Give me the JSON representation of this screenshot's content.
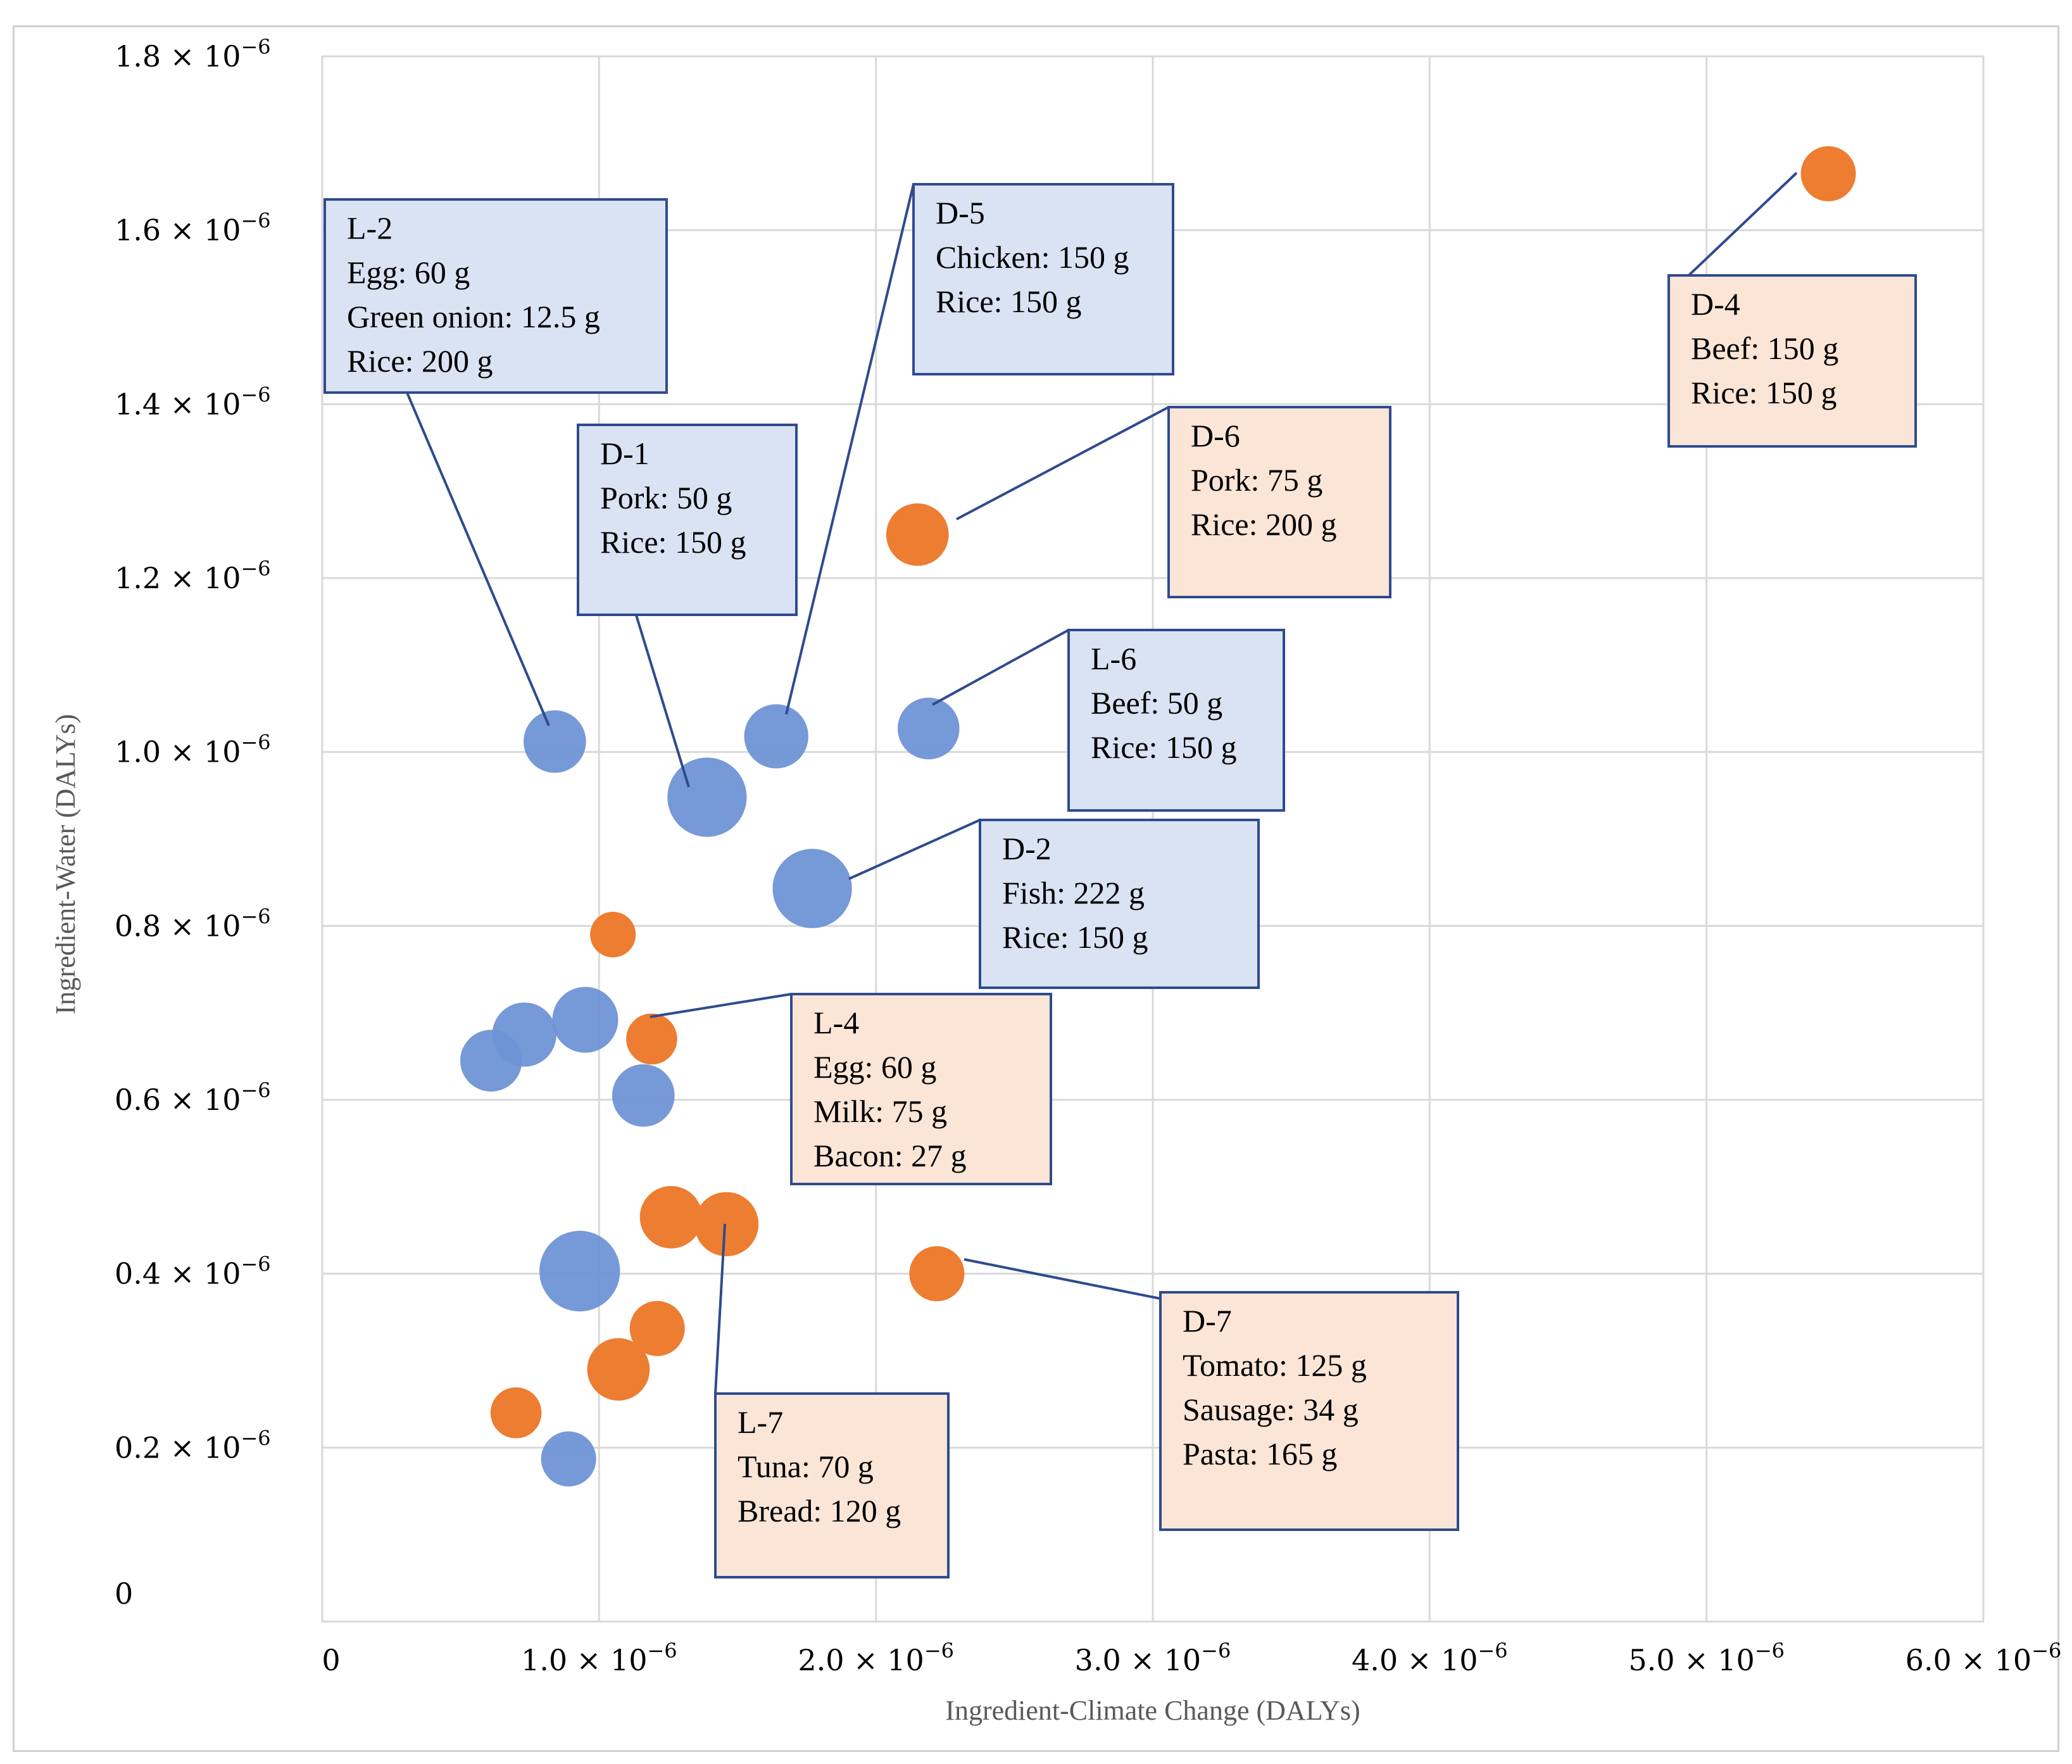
{
  "chart_data": {
    "type": "scatter",
    "subtype": "bubble",
    "xlabel": "Ingredient-Climate Change (DALYs)",
    "ylabel": "Ingredient-Water (DALYs)",
    "xlim": [
      0,
      6e-06
    ],
    "ylim": [
      0,
      1.8e-06
    ],
    "x_tick_labels": [
      {
        "value": 0,
        "mantissa": "0",
        "exp": ""
      },
      {
        "value": 1e-06,
        "mantissa": "1.0",
        "exp": "−6"
      },
      {
        "value": 2e-06,
        "mantissa": "2.0",
        "exp": "−6"
      },
      {
        "value": 3e-06,
        "mantissa": "3.0",
        "exp": "−6"
      },
      {
        "value": 4e-06,
        "mantissa": "4.0",
        "exp": "−6"
      },
      {
        "value": 5e-06,
        "mantissa": "5.0",
        "exp": "−6"
      },
      {
        "value": 6e-06,
        "mantissa": "6.0",
        "exp": "−6"
      }
    ],
    "y_tick_labels": [
      {
        "value": 0,
        "mantissa": "0",
        "exp": ""
      },
      {
        "value": 2e-07,
        "mantissa": "0.2",
        "exp": "−6"
      },
      {
        "value": 4e-07,
        "mantissa": "0.4",
        "exp": "−6"
      },
      {
        "value": 6e-07,
        "mantissa": "0.6",
        "exp": "−6"
      },
      {
        "value": 8e-07,
        "mantissa": "0.8",
        "exp": "−6"
      },
      {
        "value": 1e-06,
        "mantissa": "1.0",
        "exp": "−6"
      },
      {
        "value": 1.2e-06,
        "mantissa": "1.2",
        "exp": "−6"
      },
      {
        "value": 1.4e-06,
        "mantissa": "1.4",
        "exp": "−6"
      },
      {
        "value": 1.6e-06,
        "mantissa": "1.6",
        "exp": "−6"
      },
      {
        "value": 1.8e-06,
        "mantissa": "1.8",
        "exp": "−6"
      }
    ],
    "grid": true,
    "colors": {
      "blue": "#6f93d6",
      "orange": "#ed7d31",
      "blue_box": "#dae3f3",
      "orange_box": "#fbe5d6",
      "box_border": "#2f4b8f",
      "grid": "#d9d9d9"
    },
    "series": [
      {
        "name": "blue",
        "color": "#6f93d6",
        "points": [
          {
            "x": 8.4e-07,
            "y": 1.012e-06,
            "size": 0.9
          },
          {
            "x": 1.39e-06,
            "y": 9.48e-07,
            "size": 1.45
          },
          {
            "x": 1.64e-06,
            "y": 1.018e-06,
            "size": 0.95
          },
          {
            "x": 2.19e-06,
            "y": 1.027e-06,
            "size": 0.88
          },
          {
            "x": 1.77e-06,
            "y": 8.43e-07,
            "size": 1.45
          },
          {
            "x": 6.1e-07,
            "y": 6.45e-07,
            "size": 0.88
          },
          {
            "x": 7.3e-07,
            "y": 6.75e-07,
            "size": 0.95
          },
          {
            "x": 9.5e-07,
            "y": 6.92e-07,
            "size": 1.0
          },
          {
            "x": 1.16e-06,
            "y": 6.05e-07,
            "size": 0.9
          },
          {
            "x": 9.3e-07,
            "y": 4.03e-07,
            "size": 1.5
          },
          {
            "x": 8.9e-07,
            "y": 1.87e-07,
            "size": 0.7
          }
        ]
      },
      {
        "name": "orange",
        "color": "#ed7d31",
        "points": [
          {
            "x": 5.44e-06,
            "y": 1.665e-06,
            "size": 0.7
          },
          {
            "x": 2.15e-06,
            "y": 1.25e-06,
            "size": 0.9
          },
          {
            "x": 1.05e-06,
            "y": 7.9e-07,
            "size": 0.48
          },
          {
            "x": 1.19e-06,
            "y": 6.7e-07,
            "size": 0.6
          },
          {
            "x": 1.26e-06,
            "y": 4.65e-07,
            "size": 0.9
          },
          {
            "x": 1.46e-06,
            "y": 4.57e-07,
            "size": 0.95
          },
          {
            "x": 2.22e-06,
            "y": 4e-07,
            "size": 0.7
          },
          {
            "x": 1.21e-06,
            "y": 3.37e-07,
            "size": 0.7
          },
          {
            "x": 1.07e-06,
            "y": 2.9e-07,
            "size": 0.9
          },
          {
            "x": 7e-07,
            "y": 2.4e-07,
            "size": 0.6
          }
        ]
      }
    ],
    "annotations": [
      {
        "id": "L-2",
        "color": "blue",
        "lines": [
          "L-2",
          "Egg: 60 g",
          "Green onion: 12.5 g",
          "Rice: 200 g"
        ]
      },
      {
        "id": "D-1",
        "color": "blue",
        "lines": [
          "D-1",
          "Pork: 50 g",
          "Rice: 150 g"
        ]
      },
      {
        "id": "D-5",
        "color": "blue",
        "lines": [
          "D-5",
          "Chicken: 150 g",
          "Rice: 150 g"
        ]
      },
      {
        "id": "L-6",
        "color": "blue",
        "lines": [
          "L-6",
          "Beef:  50 g",
          "Rice: 150 g"
        ]
      },
      {
        "id": "D-2",
        "color": "blue",
        "lines": [
          "D-2",
          "Fish: 222 g",
          "Rice:  150 g"
        ]
      },
      {
        "id": "D-4",
        "color": "orange",
        "lines": [
          "D-4",
          "Beef: 150 g",
          "Rice: 150 g"
        ]
      },
      {
        "id": "D-6",
        "color": "orange",
        "lines": [
          "D-6",
          "Pork: 75 g",
          "Rice: 200 g"
        ]
      },
      {
        "id": "L-4",
        "color": "orange",
        "lines": [
          "L-4",
          "Egg: 60 g",
          "Milk: 75 g",
          "Bacon: 27 g"
        ]
      },
      {
        "id": "L-7",
        "color": "orange",
        "lines": [
          "L-7",
          "Tuna: 70 g",
          "Bread: 120 g"
        ]
      },
      {
        "id": "D-7",
        "color": "orange",
        "lines": [
          "D-7",
          "Tomato: 125 g",
          "Sausage: 34 g",
          "Pasta: 165 g"
        ]
      }
    ]
  }
}
